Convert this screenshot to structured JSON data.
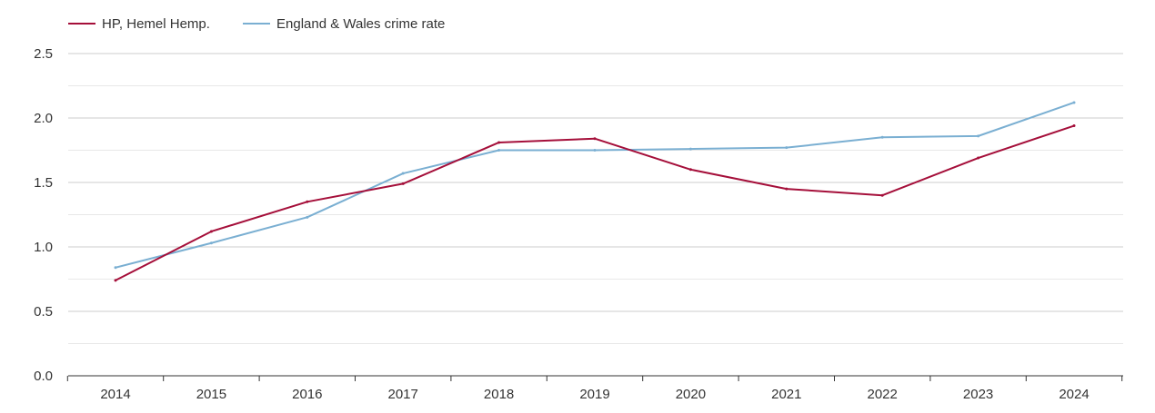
{
  "chart_data": {
    "type": "line",
    "title": "",
    "xlabel": "",
    "ylabel": "",
    "categories": [
      "2014",
      "2015",
      "2016",
      "2017",
      "2018",
      "2019",
      "2020",
      "2021",
      "2022",
      "2023",
      "2024"
    ],
    "ylim": [
      0,
      2.5
    ],
    "y_ticks": [
      "0.0",
      "0.5",
      "1.0",
      "1.5",
      "2.0",
      "2.5"
    ],
    "grid": true,
    "legend_position": "top-left",
    "series": [
      {
        "name": "HP, Hemel Hemp.",
        "color": "#a50f3a",
        "values": [
          0.74,
          1.12,
          1.35,
          1.49,
          1.81,
          1.84,
          1.6,
          1.45,
          1.4,
          1.69,
          1.94
        ]
      },
      {
        "name": "England & Wales crime rate",
        "color": "#7aafd2",
        "values": [
          0.84,
          1.03,
          1.23,
          1.57,
          1.75,
          1.75,
          1.76,
          1.77,
          1.85,
          1.86,
          2.12
        ]
      }
    ]
  }
}
